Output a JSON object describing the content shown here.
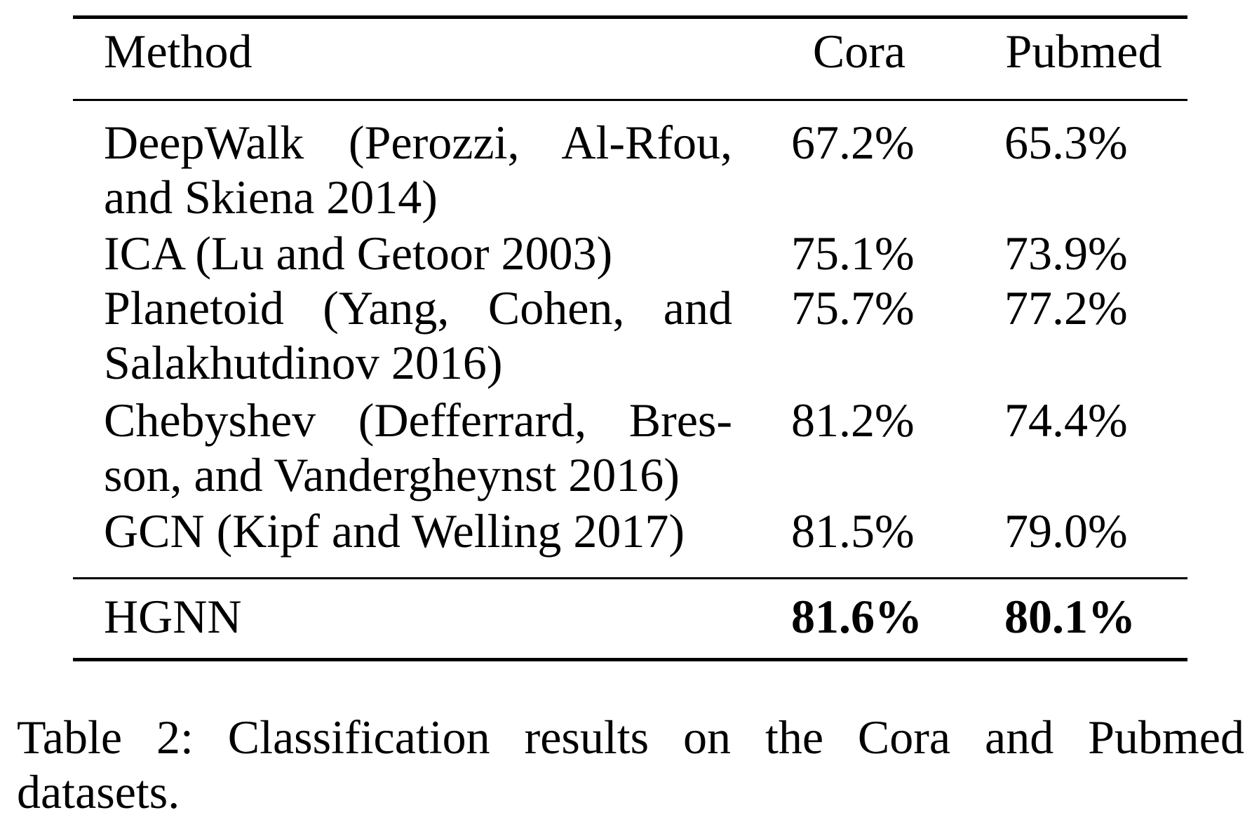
{
  "table": {
    "headers": {
      "method": "Method",
      "cora": "Cora",
      "pubmed": "Pubmed"
    },
    "rows": [
      {
        "method_lines": [
          "DeepWalk (Perozzi, Al-Rfou,",
          "and Skiena 2014)"
        ],
        "cora": "67.2%",
        "pubmed": "65.3%"
      },
      {
        "method_lines": [
          "ICA (Lu and Getoor 2003)"
        ],
        "cora": "75.1%",
        "pubmed": "73.9%"
      },
      {
        "method_lines": [
          "Planetoid (Yang, Cohen, and",
          "Salakhutdinov 2016)"
        ],
        "cora": "75.7%",
        "pubmed": "77.2%"
      },
      {
        "method_lines": [
          "Chebyshev (Defferrard, Bres-",
          "son, and Vandergheynst 2016)"
        ],
        "cora": "81.2%",
        "pubmed": "74.4%"
      },
      {
        "method_lines": [
          "GCN (Kipf and Welling 2017)"
        ],
        "cora": "81.5%",
        "pubmed": "79.0%"
      }
    ],
    "highlight_row": {
      "method": "HGNN",
      "cora": "81.6%",
      "pubmed": "80.1%"
    }
  },
  "caption_lines": [
    "Table 2: Classification results on the Cora and Pubmed",
    "datasets."
  ]
}
